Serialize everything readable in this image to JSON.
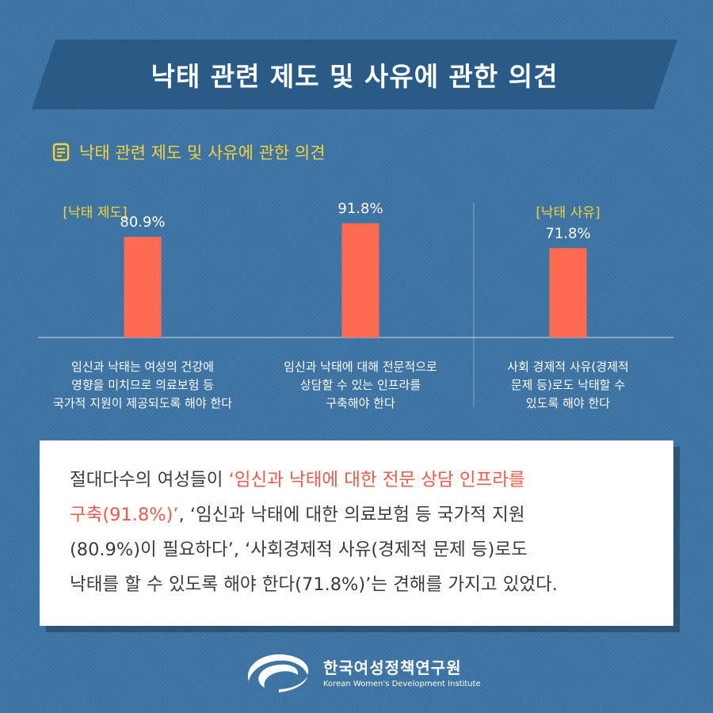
{
  "title": "낙태 관련 제도 및 사유에 관한 의견",
  "subtitle": "낙태 관련 제도 및 사유에 관한 의견",
  "colors": {
    "bar": "#ff6a52",
    "highlight": "#ef5a4a",
    "accent": "#f5d33a",
    "background": "#3d74a4",
    "banner": "#2a5b86"
  },
  "icons": {
    "subtitle": "document-icon",
    "logo": "kwdi-logo-icon"
  },
  "chart_data": {
    "type": "bar",
    "title": "낙태 관련 제도 및 사유에 관한 의견",
    "unit": "%",
    "ylim": [
      0,
      100
    ],
    "grid": false,
    "groups": [
      {
        "label": "[낙태 제도]",
        "categories": [
          0,
          1
        ]
      },
      {
        "label": "[낙태 사유]",
        "categories": [
          2
        ]
      }
    ],
    "categories": [
      [
        "임신과 낙태는 여성의 건강에",
        "영향을 미치므로 의료보험 등",
        "국가적 지원이 제공되도록 해야 한다"
      ],
      [
        "임신과 낙태에 대해 전문적으로",
        "상담할 수 있는 인프라를",
        "구축해야 한다"
      ],
      [
        "사회 경제적 사유(경제적",
        "문제 등)로도 낙태할 수",
        "있도록 해야 한다"
      ]
    ],
    "values": [
      80.9,
      91.8,
      71.8
    ],
    "value_labels": [
      "80.9%",
      "91.8%",
      "71.8%"
    ]
  },
  "note": {
    "line1_plain": "절대다수의 여성들이 ",
    "line1_hl": "‘임신과 낙태에 대한 전문 상담 인프라를",
    "line2_hl": "구축(91.8%)’",
    "line2_plain": ", ‘임신과 낙태에 대한 의료보험 등 국가적 지원",
    "line3": "(80.9%)이 필요하다’, ‘사회경제적 사유(경제적 문제 등)로도",
    "line4": "낙태를 할 수 있도록 해야 한다(71.8%)’는 견해를 가지고 있었다."
  },
  "footer": {
    "org_name": "한국여성정책연구원",
    "org_name_en": "Korean Women's Development Institute"
  }
}
